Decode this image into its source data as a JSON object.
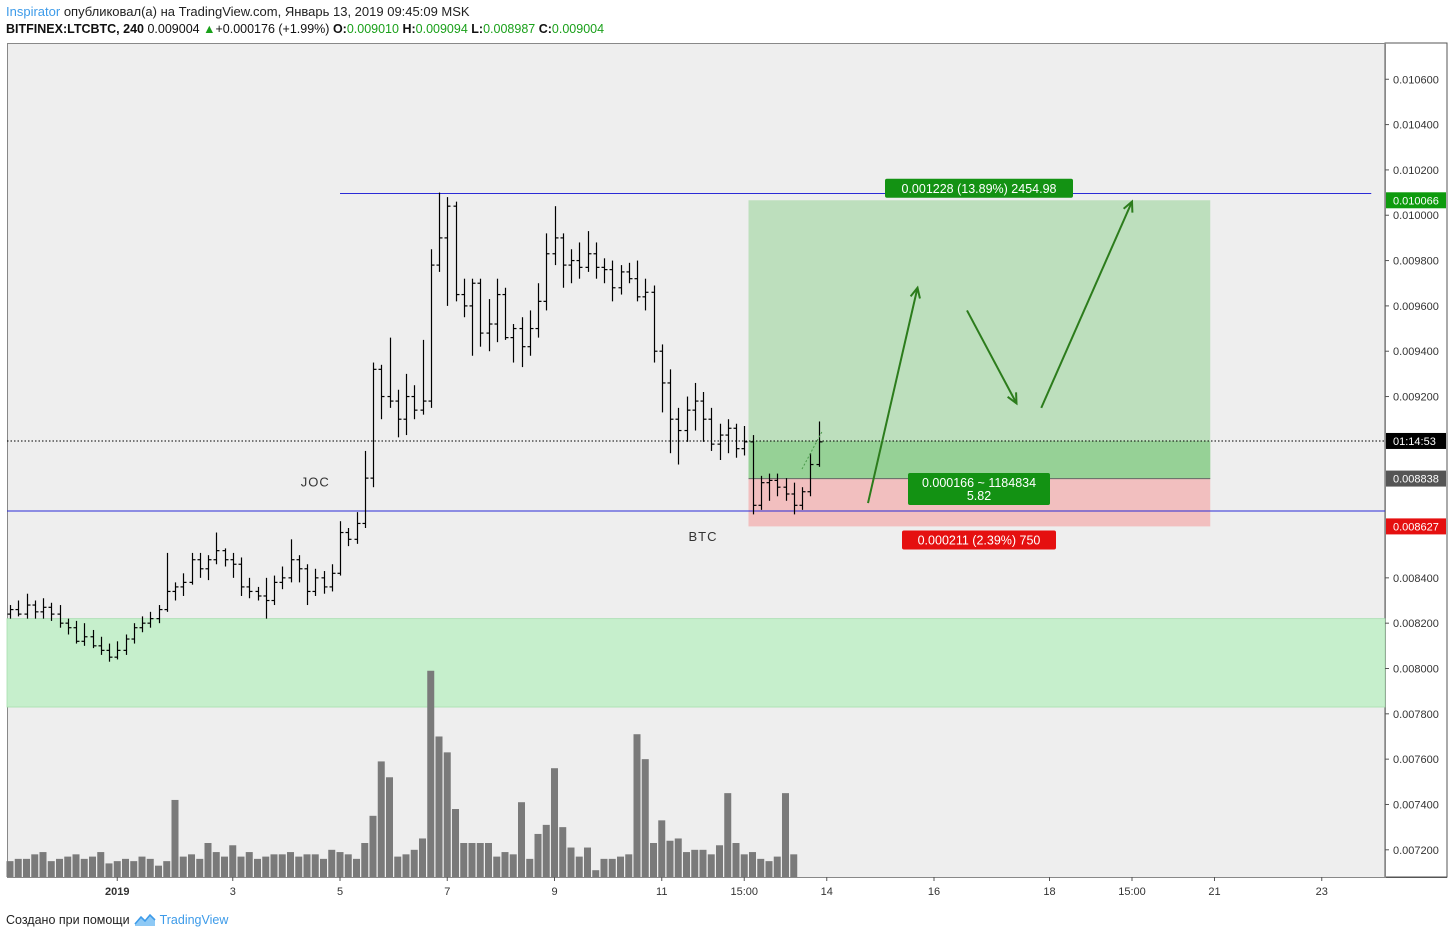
{
  "header": {
    "author": "Inspirator",
    "published_text": "опубликовал(а) на TradingView.com, Январь 13, 2019 09:45:09 MSK",
    "symbol": "BITFINEX:LTCBTC, 240",
    "last": "0.009004",
    "change_arrow": "▲",
    "change": "+0.000176 (+1.99%)",
    "o_label": "O:",
    "o": "0.009010",
    "h_label": "H:",
    "h": "0.009094",
    "l_label": "L:",
    "l": "0.008987",
    "c_label": "C:",
    "c": "0.009004"
  },
  "footer": {
    "created_with": "Создано при помощи",
    "brand": "TradingView",
    "brand_icon": "tradingview-logo-icon"
  },
  "colors": {
    "background": "#eeeeee",
    "candle": "#000000",
    "support_zone": "#c6efcc",
    "profit_zone": "#bddfbd",
    "profit_zone_dark": "#96d196",
    "loss_zone": "#f2bfbf",
    "level_line": "#2b2bd6",
    "arrow": "#2c7c1c",
    "volume": "#7a7a7a",
    "target_label": "#139213",
    "stop_label": "#e51010"
  },
  "chart_data": {
    "type": "ohlc",
    "ylim": [
      0.00708,
      0.01076
    ],
    "y_ticks": [
      "0.010600",
      "0.010400",
      "0.010200",
      "0.010000",
      "0.009800",
      "0.009600",
      "0.009400",
      "0.009200",
      "0.008400",
      "0.008200",
      "0.008000",
      "0.007800",
      "0.007600",
      "0.007400",
      "0.007200"
    ],
    "x_ticks": [
      {
        "label": "2019",
        "bar": 13,
        "bold": true
      },
      {
        "label": "3",
        "bar": 27
      },
      {
        "label": "5",
        "bar": 40
      },
      {
        "label": "7",
        "bar": 53
      },
      {
        "label": "9",
        "bar": 66
      },
      {
        "label": "11",
        "bar": 79
      },
      {
        "label": "15:00",
        "bar": 89
      },
      {
        "label": "14",
        "bar": 99
      },
      {
        "label": "16",
        "bar": 112
      },
      {
        "label": "18",
        "bar": 126
      },
      {
        "label": "15:00",
        "bar": 136
      },
      {
        "label": "21",
        "bar": 146
      },
      {
        "label": "23",
        "bar": 159
      }
    ],
    "price_badges": [
      {
        "value": "0.010066",
        "price": 0.010066,
        "style": "target"
      },
      {
        "value": "01:14:53",
        "price": 0.009004,
        "style": "time"
      },
      {
        "value": "0.008838",
        "price": 0.008838,
        "style": "entry"
      },
      {
        "value": "0.008627",
        "price": 0.008627,
        "style": "stop"
      }
    ],
    "annotations": [
      {
        "text": "JOC",
        "bar": 37,
        "price": 0.00882
      },
      {
        "text": "BTC",
        "bar": 84,
        "price": 0.00858
      }
    ],
    "levels": [
      {
        "price": 0.010096,
        "bar_from": 40,
        "bar_to": 165
      },
      {
        "price": 0.008695,
        "bar_from": 0,
        "bar_to": 167
      }
    ],
    "support_zone": {
      "top": 0.00822,
      "bottom": 0.00783
    },
    "position": {
      "bar_from": 90,
      "bar_to": 145,
      "entry": 0.008838,
      "target": 0.010066,
      "stop": 0.008627,
      "target_label": "0.001228 (13.89%) 2454.98",
      "center_label": "0.000166 ~ 1184834",
      "center_label_2": "5.82",
      "stop_label": "0.000211 (2.39%) 750"
    },
    "current_price": 0.009004,
    "arrows": [
      {
        "from": [
          104,
          0.00873
        ],
        "to": [
          110,
          0.00968
        ]
      },
      {
        "from": [
          116,
          0.00958
        ],
        "to": [
          122,
          0.00917
        ]
      },
      {
        "from": [
          125,
          0.00915
        ],
        "to": [
          136,
          0.01006
        ]
      }
    ],
    "ohlc": [
      [
        0.00824,
        0.00828,
        0.00822,
        0.00826
      ],
      [
        0.00826,
        0.0083,
        0.00823,
        0.00824
      ],
      [
        0.00824,
        0.00833,
        0.00822,
        0.00828
      ],
      [
        0.00828,
        0.0083,
        0.00822,
        0.00825
      ],
      [
        0.00825,
        0.00831,
        0.00822,
        0.00827
      ],
      [
        0.00827,
        0.00829,
        0.00821,
        0.00824
      ],
      [
        0.00824,
        0.00828,
        0.00818,
        0.0082
      ],
      [
        0.0082,
        0.00822,
        0.00815,
        0.00818
      ],
      [
        0.00818,
        0.00821,
        0.00811,
        0.00812
      ],
      [
        0.00812,
        0.0082,
        0.0081,
        0.00814
      ],
      [
        0.00814,
        0.00817,
        0.00809,
        0.0081
      ],
      [
        0.0081,
        0.00814,
        0.00806,
        0.00808
      ],
      [
        0.00808,
        0.00811,
        0.00803,
        0.00805
      ],
      [
        0.00805,
        0.00812,
        0.00804,
        0.00808
      ],
      [
        0.00808,
        0.00815,
        0.00806,
        0.00813
      ],
      [
        0.00813,
        0.0082,
        0.00811,
        0.00818
      ],
      [
        0.00818,
        0.00823,
        0.00816,
        0.0082
      ],
      [
        0.0082,
        0.00825,
        0.00818,
        0.00822
      ],
      [
        0.00822,
        0.00828,
        0.0082,
        0.00826
      ],
      [
        0.00826,
        0.00851,
        0.00825,
        0.00834
      ],
      [
        0.00834,
        0.00838,
        0.0083,
        0.00836
      ],
      [
        0.00836,
        0.00842,
        0.00832,
        0.00838
      ],
      [
        0.00838,
        0.00851,
        0.00837,
        0.00848
      ],
      [
        0.00848,
        0.00851,
        0.0084,
        0.00844
      ],
      [
        0.00844,
        0.0085,
        0.00839,
        0.00848
      ],
      [
        0.00848,
        0.0086,
        0.00846,
        0.00852
      ],
      [
        0.00852,
        0.00853,
        0.00845,
        0.00848
      ],
      [
        0.00848,
        0.00851,
        0.0084,
        0.00846
      ],
      [
        0.00846,
        0.00849,
        0.00832,
        0.00836
      ],
      [
        0.00836,
        0.0084,
        0.00831,
        0.00834
      ],
      [
        0.00834,
        0.00836,
        0.0083,
        0.00832
      ],
      [
        0.00832,
        0.0084,
        0.00822,
        0.0083
      ],
      [
        0.0083,
        0.00841,
        0.00828,
        0.00838
      ],
      [
        0.00838,
        0.00845,
        0.00835,
        0.0084
      ],
      [
        0.0084,
        0.00857,
        0.00838,
        0.00848
      ],
      [
        0.00848,
        0.0085,
        0.00838,
        0.00844
      ],
      [
        0.00844,
        0.00846,
        0.00828,
        0.00834
      ],
      [
        0.00834,
        0.00844,
        0.00832,
        0.0084
      ],
      [
        0.0084,
        0.00843,
        0.00833,
        0.00836
      ],
      [
        0.00836,
        0.00846,
        0.00834,
        0.00842
      ],
      [
        0.00842,
        0.00865,
        0.00841,
        0.0086
      ],
      [
        0.0086,
        0.00862,
        0.00854,
        0.00857
      ],
      [
        0.00857,
        0.00869,
        0.00855,
        0.00864
      ],
      [
        0.00864,
        0.00896,
        0.00862,
        0.00884
      ],
      [
        0.00884,
        0.00935,
        0.0088,
        0.00932
      ],
      [
        0.00932,
        0.00934,
        0.0091,
        0.0092
      ],
      [
        0.0092,
        0.00946,
        0.00915,
        0.00918
      ],
      [
        0.00918,
        0.00923,
        0.00902,
        0.0091
      ],
      [
        0.0091,
        0.0093,
        0.00903,
        0.0092
      ],
      [
        0.0092,
        0.00925,
        0.0091,
        0.00914
      ],
      [
        0.00914,
        0.00945,
        0.00912,
        0.00918
      ],
      [
        0.00918,
        0.00985,
        0.00915,
        0.00978
      ],
      [
        0.00978,
        0.0101,
        0.00975,
        0.0099
      ],
      [
        0.0099,
        0.01008,
        0.0096,
        0.01004
      ],
      [
        0.01004,
        0.01006,
        0.00962,
        0.00965
      ],
      [
        0.00965,
        0.00972,
        0.00955,
        0.0096
      ],
      [
        0.0096,
        0.00972,
        0.00938,
        0.0097
      ],
      [
        0.0097,
        0.00972,
        0.00942,
        0.00948
      ],
      [
        0.00948,
        0.00963,
        0.0094,
        0.00952
      ],
      [
        0.00952,
        0.00972,
        0.00944,
        0.00965
      ],
      [
        0.00965,
        0.00968,
        0.00945,
        0.00946
      ],
      [
        0.00946,
        0.00952,
        0.00935,
        0.0095
      ],
      [
        0.0095,
        0.00955,
        0.00933,
        0.00942
      ],
      [
        0.00942,
        0.00958,
        0.00938,
        0.0095
      ],
      [
        0.0095,
        0.0097,
        0.00946,
        0.00962
      ],
      [
        0.00962,
        0.00992,
        0.00958,
        0.00983
      ],
      [
        0.00983,
        0.01004,
        0.00978,
        0.0099
      ],
      [
        0.0099,
        0.00992,
        0.00968,
        0.00978
      ],
      [
        0.00978,
        0.00985,
        0.0097,
        0.0098
      ],
      [
        0.0098,
        0.00988,
        0.00972,
        0.00977
      ],
      [
        0.00977,
        0.00993,
        0.00975,
        0.00983
      ],
      [
        0.00983,
        0.00988,
        0.00972,
        0.00977
      ],
      [
        0.00977,
        0.00981,
        0.0097,
        0.00976
      ],
      [
        0.00976,
        0.0098,
        0.00962,
        0.00968
      ],
      [
        0.00968,
        0.00978,
        0.00965,
        0.00975
      ],
      [
        0.00975,
        0.00979,
        0.0097,
        0.00972
      ],
      [
        0.00972,
        0.0098,
        0.00962,
        0.00964
      ],
      [
        0.00964,
        0.00972,
        0.00958,
        0.00966
      ],
      [
        0.00966,
        0.00969,
        0.00935,
        0.0094
      ],
      [
        0.0094,
        0.00943,
        0.00913,
        0.00926
      ],
      [
        0.00926,
        0.00932,
        0.00895,
        0.0091
      ],
      [
        0.0091,
        0.00915,
        0.0089,
        0.00905
      ],
      [
        0.00905,
        0.0092,
        0.009,
        0.00914
      ],
      [
        0.00914,
        0.00926,
        0.00905,
        0.00918
      ],
      [
        0.00918,
        0.00922,
        0.009,
        0.0091
      ],
      [
        0.0091,
        0.00915,
        0.00896,
        0.00899
      ],
      [
        0.00899,
        0.00908,
        0.00892,
        0.00903
      ],
      [
        0.00903,
        0.0091,
        0.00895,
        0.00906
      ],
      [
        0.00906,
        0.00908,
        0.00893,
        0.00897
      ],
      [
        0.00897,
        0.00907,
        0.00894,
        0.009
      ],
      [
        0.009,
        0.00903,
        0.00868,
        0.00872
      ],
      [
        0.00872,
        0.00885,
        0.0087,
        0.00882
      ],
      [
        0.00882,
        0.00886,
        0.00874,
        0.00883
      ],
      [
        0.00883,
        0.00886,
        0.00876,
        0.0088
      ],
      [
        0.0088,
        0.00884,
        0.00874,
        0.00877
      ],
      [
        0.00877,
        0.00882,
        0.00868,
        0.00872
      ],
      [
        0.00872,
        0.0088,
        0.0087,
        0.00878
      ],
      [
        0.00878,
        0.00895,
        0.00876,
        0.0089
      ],
      [
        0.0089,
        0.00909,
        0.00889,
        0.009
      ]
    ],
    "volume_max": 0.008,
    "volumes": [
      0.00715,
      0.00716,
      0.00716,
      0.00718,
      0.00719,
      0.00715,
      0.00716,
      0.00717,
      0.00718,
      0.00716,
      0.00717,
      0.00719,
      0.00714,
      0.00715,
      0.00716,
      0.00715,
      0.00717,
      0.00716,
      0.00713,
      0.00715,
      0.00742,
      0.00717,
      0.00718,
      0.00716,
      0.00723,
      0.00719,
      0.00717,
      0.00722,
      0.00717,
      0.00719,
      0.00716,
      0.00717,
      0.00718,
      0.00718,
      0.00719,
      0.00717,
      0.00718,
      0.00718,
      0.00716,
      0.0072,
      0.00719,
      0.00718,
      0.00716,
      0.00723,
      0.00735,
      0.00759,
      0.00752,
      0.00717,
      0.00718,
      0.0072,
      0.00725,
      0.00799,
      0.0077,
      0.00763,
      0.00738,
      0.00723,
      0.00723,
      0.00723,
      0.00723,
      0.00717,
      0.00719,
      0.00718,
      0.00741,
      0.00716,
      0.00727,
      0.00731,
      0.00756,
      0.0073,
      0.00721,
      0.00717,
      0.00721,
      0.00711,
      0.00716,
      0.00716,
      0.00717,
      0.00718,
      0.00771,
      0.0076,
      0.00723,
      0.00733,
      0.00724,
      0.00725,
      0.00719,
      0.0072,
      0.0072,
      0.00718,
      0.00722,
      0.00745,
      0.00723,
      0.00718,
      0.00719,
      0.00716,
      0.00715,
      0.00717,
      0.00745,
      0.00718
    ]
  }
}
